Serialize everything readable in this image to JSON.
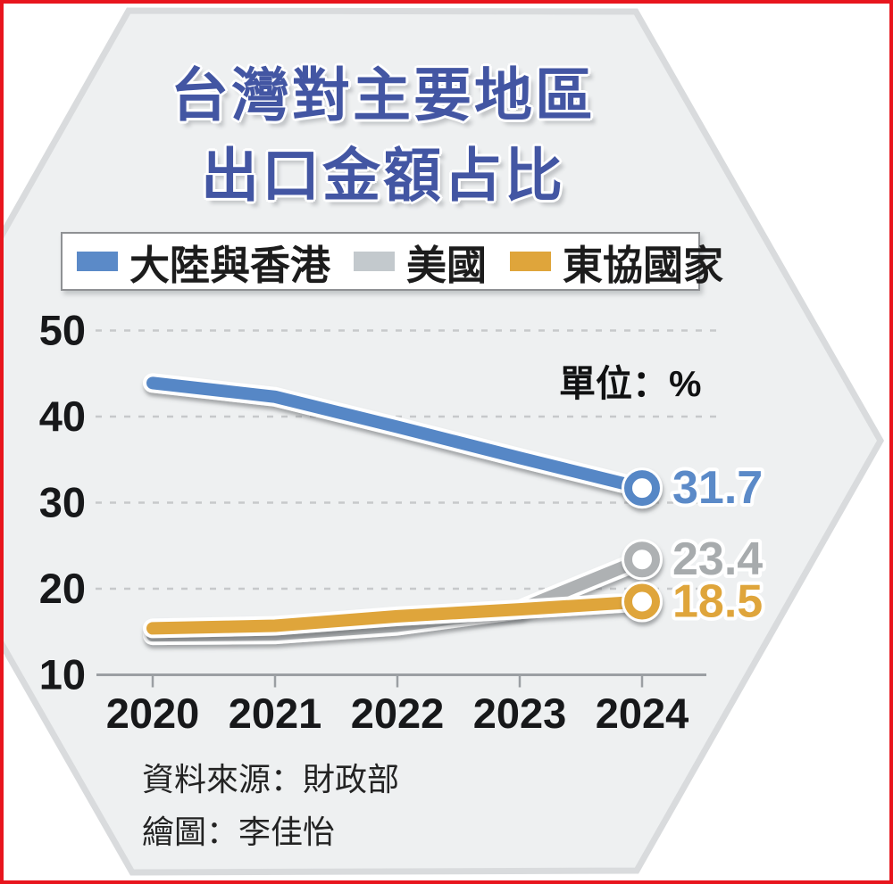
{
  "frame": {
    "border_color": "#e8151d"
  },
  "title": {
    "line1": "台灣對主要地區",
    "line2": "出口金額占比",
    "color": "#4356a3"
  },
  "legend": {
    "items": [
      {
        "label": "大陸與香港",
        "color": "#5b8ac8"
      },
      {
        "label": "美國",
        "color": "#c3c9cd"
      },
      {
        "label": "東協國家",
        "color": "#dfa53b"
      }
    ]
  },
  "unit_label": "單位：%",
  "source": {
    "line1": "資料來源：財政部",
    "line2": "繪圖：李佳怡"
  },
  "chart_data": {
    "type": "line",
    "x": [
      2020,
      2021,
      2022,
      2023,
      2024
    ],
    "yticks": [
      10,
      20,
      30,
      40,
      50
    ],
    "ylim": [
      10,
      52
    ],
    "unit": "%",
    "grid": "horizontal-dashed",
    "legend_position": "top",
    "series": [
      {
        "id": "china-hk",
        "name": "大陸與香港",
        "color": "#5787c6",
        "label_color": "#5b8ac8",
        "values": [
          43.9,
          42.3,
          38.8,
          35.2,
          31.7
        ],
        "end_label": "31.7"
      },
      {
        "id": "usa",
        "name": "美國",
        "color": "#aeb1b3",
        "label_color": "#a7abad",
        "values": [
          14.6,
          14.7,
          15.7,
          17.6,
          23.4
        ],
        "end_label": "23.4"
      },
      {
        "id": "asean",
        "name": "東協國家",
        "color": "#dfa53b",
        "label_color": "#dfa53b",
        "values": [
          15.4,
          15.7,
          16.8,
          17.6,
          18.5
        ],
        "end_label": "18.5"
      }
    ]
  }
}
